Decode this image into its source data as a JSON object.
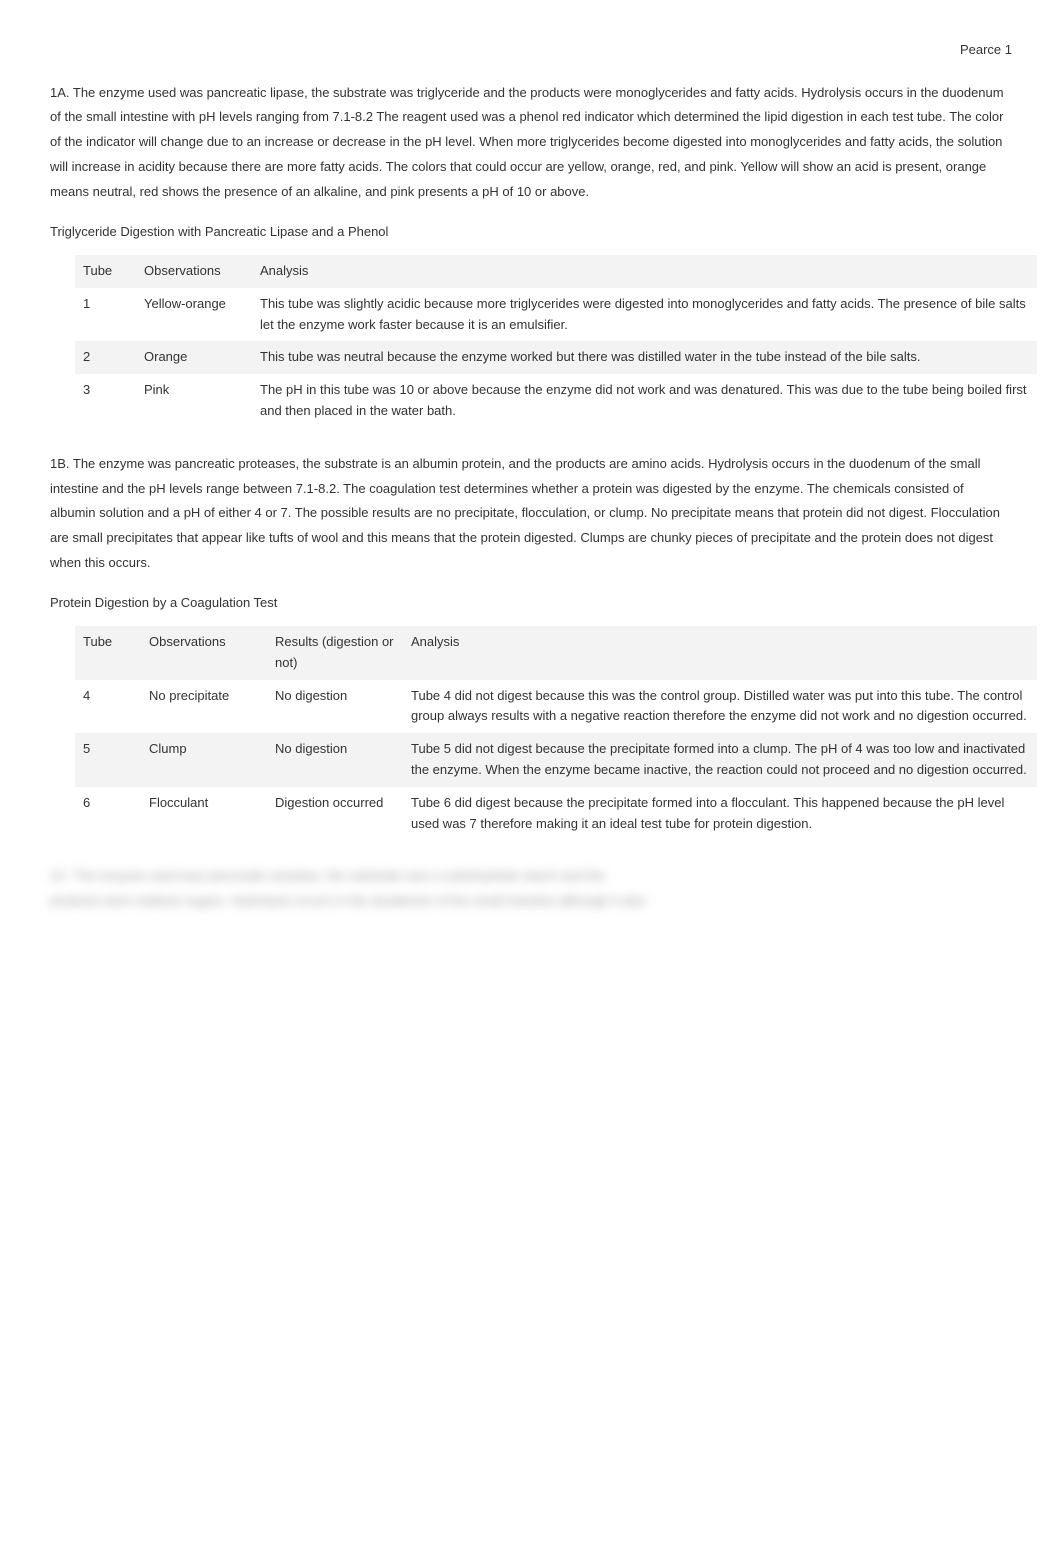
{
  "header": {
    "right": "Pearce 1"
  },
  "section1a": {
    "text": "1A. The enzyme used was pancreatic lipase, the substrate was triglyceride and the products were monoglycerides and fatty acids. Hydrolysis occurs in the duodenum of the small intestine with pH levels ranging from 7.1-8.2 The reagent used was a phenol red indicator which determined the lipid digestion in each test tube. The color of the indicator will change due to an increase or decrease in the pH level. When more triglycerides become digested into monoglycerides and fatty acids, the solution will increase in acidity because there are more fatty acids. The colors that could occur are yellow, orange, red, and pink. Yellow will show an acid is present, orange means neutral, red shows the presence of an alkaline, and pink presents a pH of 10 or above."
  },
  "table1": {
    "title": "Triglyceride Digestion with Pancreatic Lipase and a Phenol",
    "headers": {
      "tube": "Tube",
      "obs": "Observations",
      "analysis": "Analysis"
    },
    "rows": [
      {
        "tube": "1",
        "obs": "Yellow-orange",
        "analysis": "This tube was slightly acidic because more triglycerides were digested into monoglycerides and fatty acids. The presence of bile salts let the enzyme work faster because it is an emulsifier."
      },
      {
        "tube": "2",
        "obs": "Orange",
        "analysis": "This tube was neutral because the enzyme worked but there was distilled water in the tube instead of the bile salts."
      },
      {
        "tube": "3",
        "obs": "Pink",
        "analysis": "The pH in this tube was 10 or above because the enzyme did not work and was denatured. This was due to the tube being boiled first and then placed in the water bath."
      }
    ]
  },
  "section1b": {
    "text": "1B. The enzyme was pancreatic proteases, the substrate is an albumin protein, and the products are amino acids. Hydrolysis occurs in the duodenum of the small intestine and the pH levels range between 7.1-8.2. The coagulation test determines whether a protein was digested by the enzyme. The chemicals consisted of albumin solution and a pH of either 4 or 7. The possible results are no precipitate, flocculation, or clump. No precipitate means that protein did not digest. Flocculation are small precipitates that appear like tufts of wool and this means that the protein digested. Clumps are chunky pieces of precipitate and the protein does not digest when this occurs."
  },
  "table2": {
    "title": "Protein Digestion by a Coagulation Test",
    "headers": {
      "tube": "Tube",
      "obs": "Observations",
      "results": "Results (digestion or not)",
      "analysis": "Analysis"
    },
    "rows": [
      {
        "tube": "4",
        "obs": "No precipitate",
        "results": "No digestion",
        "analysis": "Tube 4 did not digest because this was the control group. Distilled water was put into this tube. The control group always results with a negative reaction therefore the enzyme did not work and no digestion occurred."
      },
      {
        "tube": "5",
        "obs": "Clump",
        "results": "No digestion",
        "analysis": "Tube 5 did not digest because the precipitate formed into a clump. The pH of 4 was too low and inactivated the enzyme. When the enzyme became inactive, the reaction could not proceed and no digestion occurred."
      },
      {
        "tube": "6",
        "obs": "Flocculant",
        "results": "Digestion occurred",
        "analysis": "Tube 6 did digest because the precipitate formed into a flocculant. This happened because the pH level used was 7 therefore making it an ideal test tube for protein digestion."
      }
    ]
  },
  "blurred": {
    "line1": "1C. The enzyme used was pancreatic amylase, the substrate was a carbohydrate starch and the",
    "line2": "products were maltose sugars. Hydrolysis occurs in the duodenum of the small intestine although it also"
  }
}
